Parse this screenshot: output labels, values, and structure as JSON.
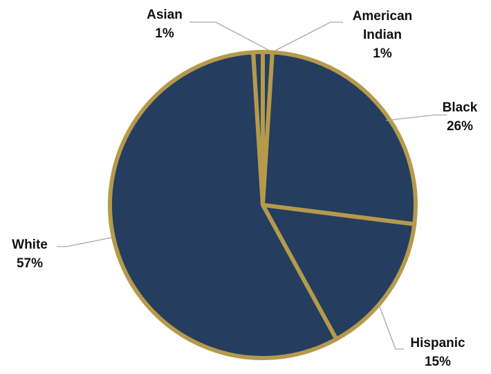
{
  "chart_data": {
    "type": "pie",
    "title": "",
    "start_angle_deg": 0,
    "direction": "clockwise",
    "slices": [
      {
        "label": "American Indian",
        "value": 1,
        "display": "1%"
      },
      {
        "label": "Black",
        "value": 26,
        "display": "26%"
      },
      {
        "label": "Hispanic",
        "value": 15,
        "display": "15%"
      },
      {
        "label": "White",
        "value": 57,
        "display": "57%"
      },
      {
        "label": "Asian",
        "value": 1,
        "display": "1%"
      }
    ],
    "legend": "none",
    "data_labels": "outside with leader lines",
    "colors": {
      "fill": "#253D5E",
      "border": "#B59A4C",
      "leader": "#A6A6A6"
    }
  }
}
